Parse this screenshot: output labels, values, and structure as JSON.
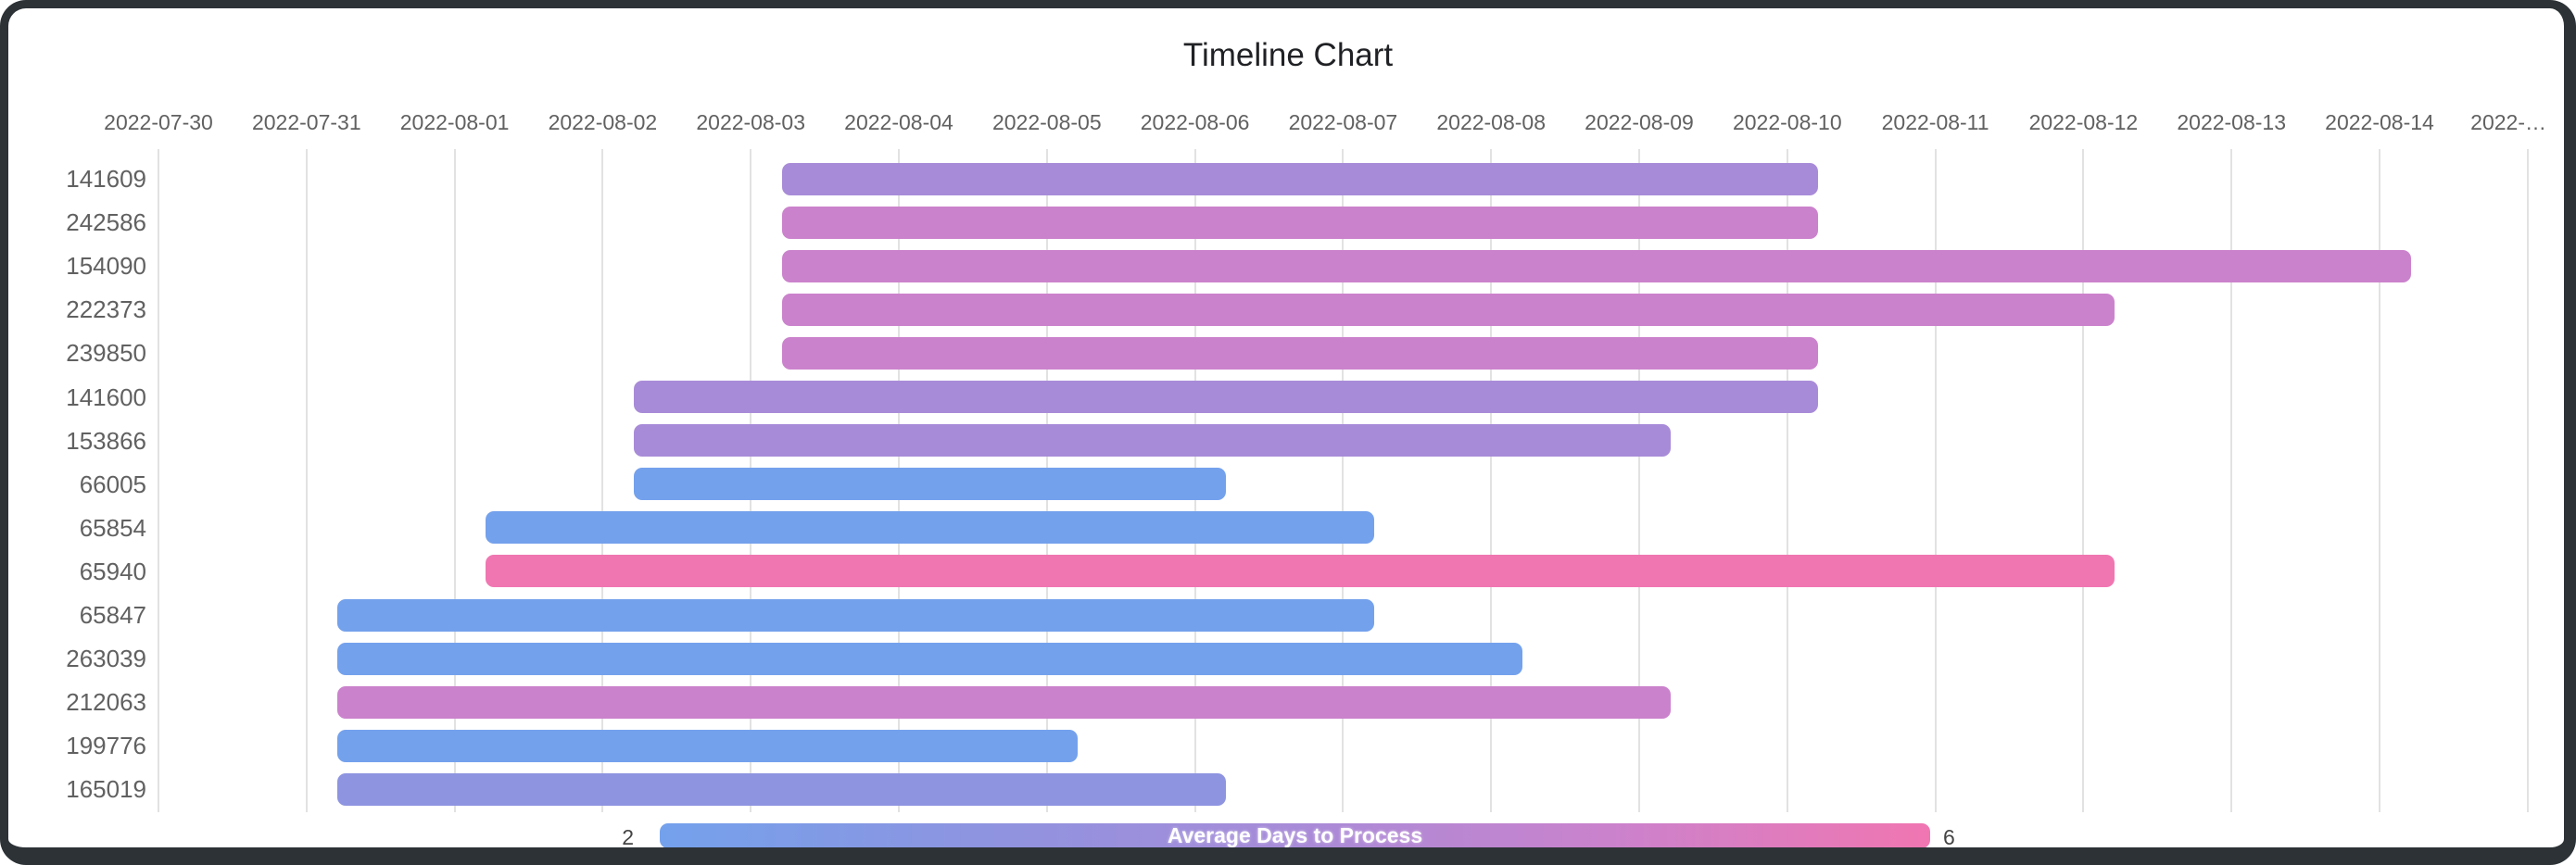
{
  "window": {
    "background": "#ffffff",
    "frame_color": "#2c3236"
  },
  "chart_data": {
    "type": "bar",
    "variant": "timeline-gantt",
    "title": "Timeline Chart",
    "grid": true,
    "x_axis": {
      "tick_labels": [
        "2022-07-30",
        "2022-07-31",
        "2022-08-01",
        "2022-08-02",
        "2022-08-03",
        "2022-08-04",
        "2022-08-05",
        "2022-08-06",
        "2022-08-07",
        "2022-08-08",
        "2022-08-09",
        "2022-08-10",
        "2022-08-11",
        "2022-08-12",
        "2022-08-13",
        "2022-08-14",
        "2022-…"
      ]
    },
    "start_time_fraction_of_day": 0.21,
    "rows": [
      {
        "label": "141609",
        "start": "2022-08-03",
        "end": "2022-08-10",
        "color": "#a88bd8"
      },
      {
        "label": "242586",
        "start": "2022-08-03",
        "end": "2022-08-10",
        "color": "#cb82cc"
      },
      {
        "label": "154090",
        "start": "2022-08-03",
        "end": "2022-08-14",
        "color": "#cb82cc"
      },
      {
        "label": "222373",
        "start": "2022-08-03",
        "end": "2022-08-12",
        "color": "#cb82cc"
      },
      {
        "label": "239850",
        "start": "2022-08-03",
        "end": "2022-08-10",
        "color": "#cb82cc"
      },
      {
        "label": "141600",
        "start": "2022-08-02",
        "end": "2022-08-10",
        "color": "#a88bd8"
      },
      {
        "label": "153866",
        "start": "2022-08-02",
        "end": "2022-08-09",
        "color": "#a88bd8"
      },
      {
        "label": "66005",
        "start": "2022-08-02",
        "end": "2022-08-06",
        "color": "#74a1ec"
      },
      {
        "label": "65854",
        "start": "2022-08-01",
        "end": "2022-08-07",
        "color": "#74a1ec"
      },
      {
        "label": "65940",
        "start": "2022-08-01",
        "end": "2022-08-12",
        "color": "#f076b1"
      },
      {
        "label": "65847",
        "start": "2022-07-31",
        "end": "2022-08-07",
        "color": "#74a1ec"
      },
      {
        "label": "263039",
        "start": "2022-07-31",
        "end": "2022-08-08",
        "color": "#74a1ec"
      },
      {
        "label": "212063",
        "start": "2022-07-31",
        "end": "2022-08-09",
        "color": "#cb82cc"
      },
      {
        "label": "199776",
        "start": "2022-07-31",
        "end": "2022-08-05",
        "color": "#74a1ec"
      },
      {
        "label": "165019",
        "start": "2022-07-31",
        "end": "2022-08-06",
        "color": "#8e94e0"
      }
    ],
    "legend": {
      "title": "Average Days to Process",
      "min_label": "2",
      "max_label": "6",
      "gradient": [
        "#74a1ec",
        "#8e94e0",
        "#a88bd8",
        "#cb82cc",
        "#f076b1"
      ]
    }
  }
}
